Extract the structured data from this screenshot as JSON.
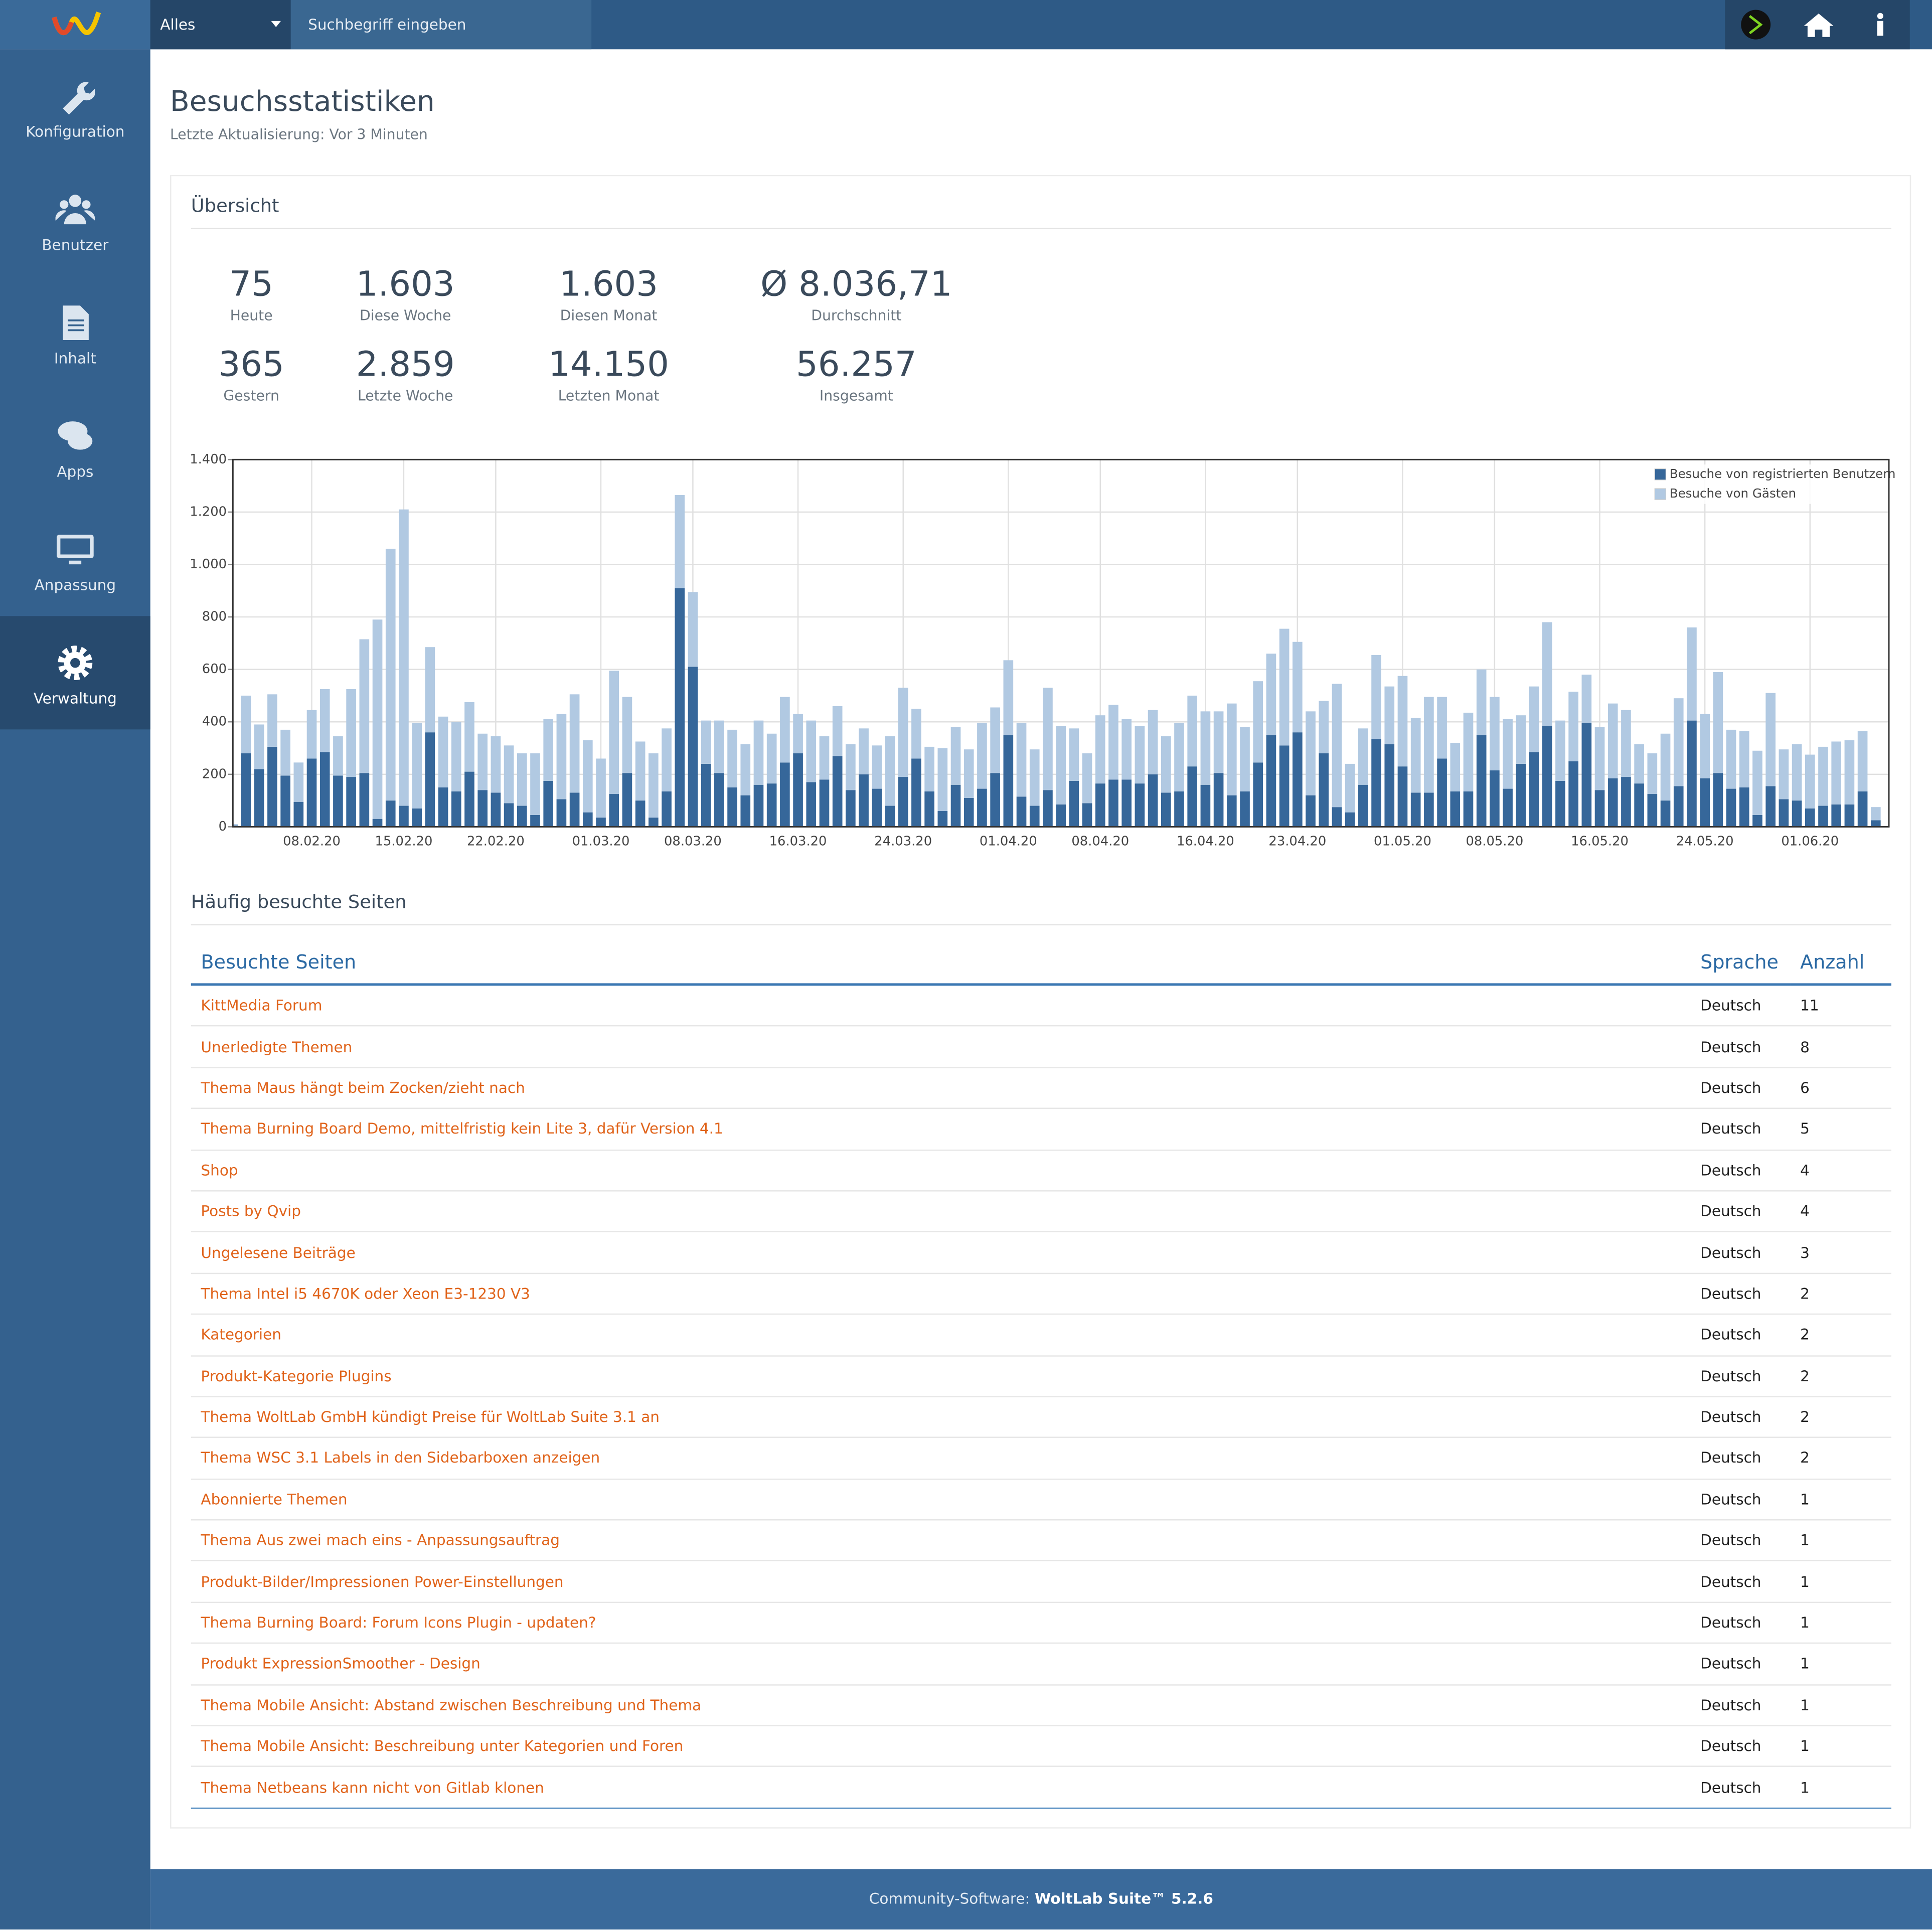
{
  "nav": {
    "search_scope": "Alles",
    "search_placeholder": "Suchbegriff eingeben",
    "menu": [
      "Konfiguration",
      "Benutzer",
      "Inhalt",
      "Apps",
      "Anpassung",
      "Verwaltung"
    ]
  },
  "header": {
    "title": "Besuchsstatistiken",
    "subtitle": "Letzte Aktualisierung: Vor 3 Minuten"
  },
  "overview": {
    "title": "Übersicht",
    "stats": [
      {
        "value": "75",
        "label": "Heute"
      },
      {
        "value": "1.603",
        "label": "Diese Woche"
      },
      {
        "value": "1.603",
        "label": "Diesen Monat"
      },
      {
        "value": "Ø 8.036,71",
        "label": "Durchschnitt"
      },
      {
        "value": "365",
        "label": "Gestern"
      },
      {
        "value": "2.859",
        "label": "Letzte Woche"
      },
      {
        "value": "14.150",
        "label": "Letzten Monat"
      },
      {
        "value": "56.257",
        "label": "Insgesamt"
      }
    ]
  },
  "chart_data": {
    "type": "bar",
    "stacked": true,
    "grid": true,
    "legend": "top-right",
    "categories": [
      null,
      null,
      null,
      null,
      null,
      null,
      "08.02.20",
      null,
      null,
      null,
      null,
      null,
      null,
      "15.02.20",
      null,
      null,
      null,
      null,
      null,
      null,
      "22.02.20",
      null,
      null,
      null,
      null,
      null,
      null,
      null,
      "01.03.20",
      null,
      null,
      null,
      null,
      null,
      null,
      "08.03.20",
      null,
      null,
      null,
      null,
      null,
      null,
      null,
      "16.03.20",
      null,
      null,
      null,
      null,
      null,
      null,
      null,
      "24.03.20",
      null,
      null,
      null,
      null,
      null,
      null,
      null,
      "01.04.20",
      null,
      null,
      null,
      null,
      null,
      null,
      "08.04.20",
      null,
      null,
      null,
      null,
      null,
      null,
      null,
      "16.04.20",
      null,
      null,
      null,
      null,
      null,
      null,
      "23.04.20",
      null,
      null,
      null,
      null,
      null,
      null,
      null,
      "01.05.20",
      null,
      null,
      null,
      null,
      null,
      null,
      "08.05.20",
      null,
      null,
      null,
      null,
      null,
      null,
      null,
      "16.05.20",
      null,
      null,
      null,
      null,
      null,
      null,
      null,
      "24.05.20",
      null,
      null,
      null,
      null,
      null,
      null,
      null,
      "01.06.20",
      null,
      null,
      null,
      null,
      null
    ],
    "series": [
      {
        "name": "Besuche von registrierten Benutzern",
        "color": "#36679a",
        "values": [
          5,
          280,
          220,
          305,
          195,
          95,
          260,
          285,
          195,
          190,
          205,
          30,
          100,
          80,
          70,
          360,
          150,
          135,
          210,
          140,
          130,
          90,
          80,
          45,
          175,
          105,
          130,
          55,
          35,
          125,
          205,
          100,
          35,
          135,
          910,
          610,
          240,
          205,
          150,
          120,
          160,
          165,
          245,
          280,
          170,
          180,
          270,
          140,
          200,
          145,
          80,
          190,
          260,
          135,
          60,
          160,
          110,
          145,
          205,
          350,
          115,
          80,
          140,
          85,
          175,
          90,
          165,
          180,
          180,
          165,
          200,
          130,
          135,
          230,
          160,
          205,
          120,
          135,
          245,
          350,
          310,
          360,
          120,
          280,
          75,
          55,
          160,
          335,
          315,
          230,
          130,
          130,
          260,
          135,
          135,
          350,
          215,
          145,
          240,
          285,
          385,
          175,
          250,
          395,
          140,
          185,
          190,
          165,
          125,
          100,
          155,
          405,
          185,
          205,
          145,
          150,
          45,
          155,
          105,
          100,
          70,
          80,
          85,
          85,
          135,
          25
        ]
      },
      {
        "name": "Besuche von Gästen",
        "color": "#b1c9e2",
        "values": [
          5,
          220,
          170,
          200,
          175,
          150,
          185,
          240,
          150,
          335,
          510,
          760,
          960,
          1130,
          325,
          325,
          270,
          265,
          265,
          215,
          215,
          220,
          200,
          235,
          235,
          325,
          375,
          275,
          225,
          470,
          290,
          225,
          245,
          240,
          355,
          285,
          165,
          200,
          220,
          195,
          245,
          190,
          250,
          150,
          235,
          165,
          190,
          175,
          175,
          165,
          265,
          340,
          190,
          170,
          240,
          220,
          185,
          250,
          250,
          285,
          280,
          215,
          390,
          300,
          200,
          190,
          260,
          285,
          230,
          220,
          245,
          215,
          260,
          270,
          280,
          235,
          350,
          245,
          310,
          310,
          445,
          345,
          320,
          200,
          470,
          185,
          215,
          320,
          220,
          345,
          285,
          365,
          235,
          185,
          300,
          250,
          280,
          265,
          185,
          250,
          395,
          230,
          265,
          185,
          240,
          285,
          255,
          150,
          155,
          255,
          335,
          355,
          245,
          385,
          225,
          215,
          245,
          355,
          190,
          215,
          205,
          225,
          240,
          245,
          230,
          50
        ]
      }
    ],
    "ylim": [
      0,
      1400
    ],
    "yticks": [
      0,
      200,
      400,
      600,
      800,
      {
        "value": 1000,
        "label": "1.000"
      },
      {
        "value": 1200,
        "label": "1.200"
      },
      {
        "value": 1400,
        "label": "1.400"
      }
    ]
  },
  "pages": {
    "title": "Häufig besuchte Seiten",
    "columns": [
      "Besuchte Seiten",
      "Sprache",
      "Anzahl"
    ],
    "rows": [
      [
        "KittMedia Forum",
        "Deutsch",
        11
      ],
      [
        "Unerledigte Themen",
        "Deutsch",
        8
      ],
      [
        "Thema Maus hängt beim Zocken/zieht nach",
        "Deutsch",
        6
      ],
      [
        "Thema Burning Board Demo, mittelfristig kein Lite 3, dafür Version 4.1",
        "Deutsch",
        5
      ],
      [
        "Shop",
        "Deutsch",
        4
      ],
      [
        "Posts by Qvip",
        "Deutsch",
        4
      ],
      [
        "Ungelesene Beiträge",
        "Deutsch",
        3
      ],
      [
        "Thema Intel i5 4670K oder Xeon E3-1230 V3",
        "Deutsch",
        2
      ],
      [
        "Kategorien",
        "Deutsch",
        2
      ],
      [
        "Produkt-Kategorie Plugins",
        "Deutsch",
        2
      ],
      [
        "Thema WoltLab GmbH kündigt Preise für WoltLab Suite 3.1 an",
        "Deutsch",
        2
      ],
      [
        "Thema WSC 3.1 Labels in den Sidebarboxen anzeigen",
        "Deutsch",
        2
      ],
      [
        "Abonnierte Themen",
        "Deutsch",
        1
      ],
      [
        "Thema Aus zwei mach eins - Anpassungsauftrag",
        "Deutsch",
        1
      ],
      [
        "Produkt-Bilder/Impressionen Power-Einstellungen",
        "Deutsch",
        1
      ],
      [
        "Thema Burning Board: Forum Icons Plugin - updaten?",
        "Deutsch",
        1
      ],
      [
        "Produkt ExpressionSmoother - Design",
        "Deutsch",
        1
      ],
      [
        "Thema Mobile Ansicht: Abstand zwischen Beschreibung und Thema",
        "Deutsch",
        1
      ],
      [
        "Thema Mobile Ansicht: Beschreibung unter Kategorien und Foren",
        "Deutsch",
        1
      ],
      [
        "Thema Netbeans kann nicht von Gitlab klonen",
        "Deutsch",
        1
      ]
    ]
  },
  "footer": {
    "prefix": "Community-Software:",
    "product": "WoltLab Suite™ 5.2.6"
  }
}
